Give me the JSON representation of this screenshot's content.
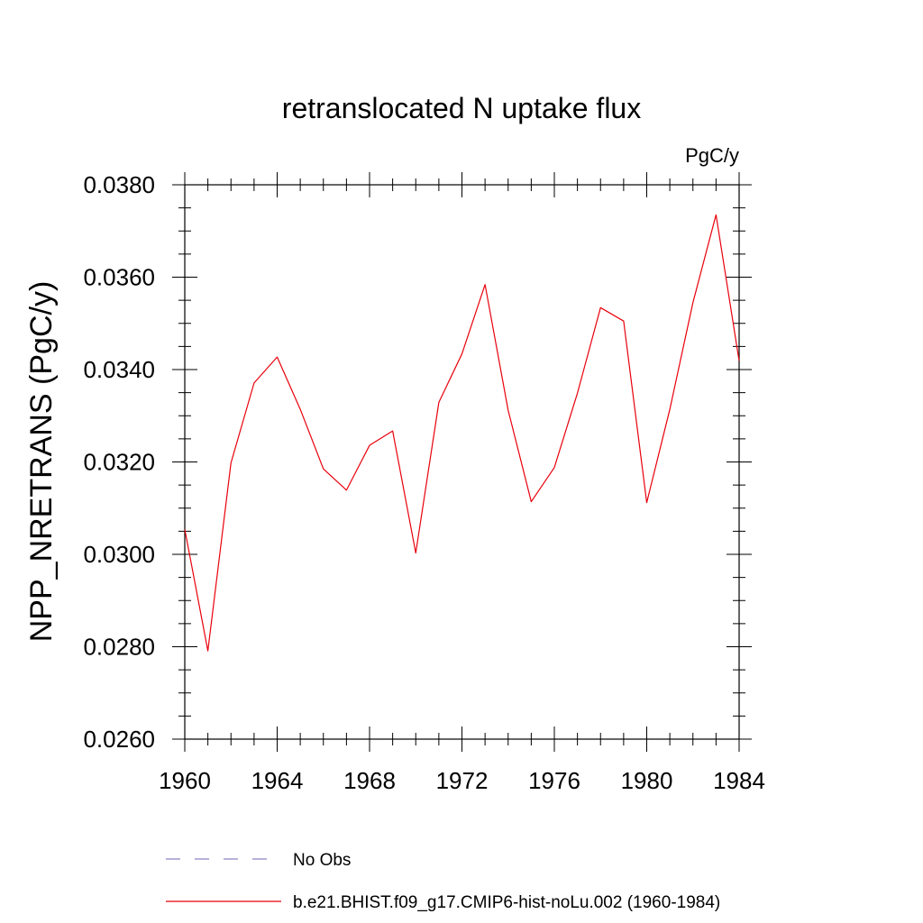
{
  "chart_data": {
    "type": "line",
    "title": "retranslocated N uptake flux",
    "units": "PgC/y",
    "xlabel": "",
    "ylabel": "NPP_NRETRANS  (PgC/y)",
    "xlim": [
      1960,
      1984
    ],
    "ylim": [
      0.026,
      0.038
    ],
    "x_ticks": [
      1960,
      1964,
      1968,
      1972,
      1976,
      1980,
      1984
    ],
    "x_tick_labels": [
      "1960",
      "1964",
      "1968",
      "1972",
      "1976",
      "1980",
      "1984"
    ],
    "y_ticks": [
      0.026,
      0.028,
      0.03,
      0.032,
      0.034,
      0.036,
      0.038
    ],
    "y_tick_labels": [
      "0.0260",
      "0.0280",
      "0.0300",
      "0.0320",
      "0.0340",
      "0.0360",
      "0.0380"
    ],
    "grid": false,
    "legend_position": "bottom",
    "legend": [
      {
        "label": "No Obs",
        "style": "dashed",
        "color": "#8a84c4"
      },
      {
        "label": "b.e21.BHIST.f09_g17.CMIP6-hist-noLu.002 (1960-1984)",
        "style": "solid",
        "color": "#e8000b"
      }
    ],
    "series": [
      {
        "name": "b.e21.BHIST.f09_g17.CMIP6-hist-noLu.002 (1960-1984)",
        "color": "#e8000b",
        "x": [
          1960,
          1961,
          1962,
          1963,
          1964,
          1965,
          1966,
          1967,
          1968,
          1969,
          1970,
          1971,
          1972,
          1973,
          1974,
          1975,
          1976,
          1977,
          1978,
          1979,
          1980,
          1981,
          1982,
          1983,
          1984
        ],
        "y": [
          0.03054,
          0.02791,
          0.03198,
          0.03371,
          0.03427,
          0.03314,
          0.03185,
          0.03139,
          0.03236,
          0.03267,
          0.03003,
          0.03329,
          0.03434,
          0.03584,
          0.03312,
          0.03114,
          0.03188,
          0.03349,
          0.03534,
          0.03505,
          0.03112,
          0.03314,
          0.03545,
          0.03735,
          0.03419
        ]
      }
    ]
  }
}
